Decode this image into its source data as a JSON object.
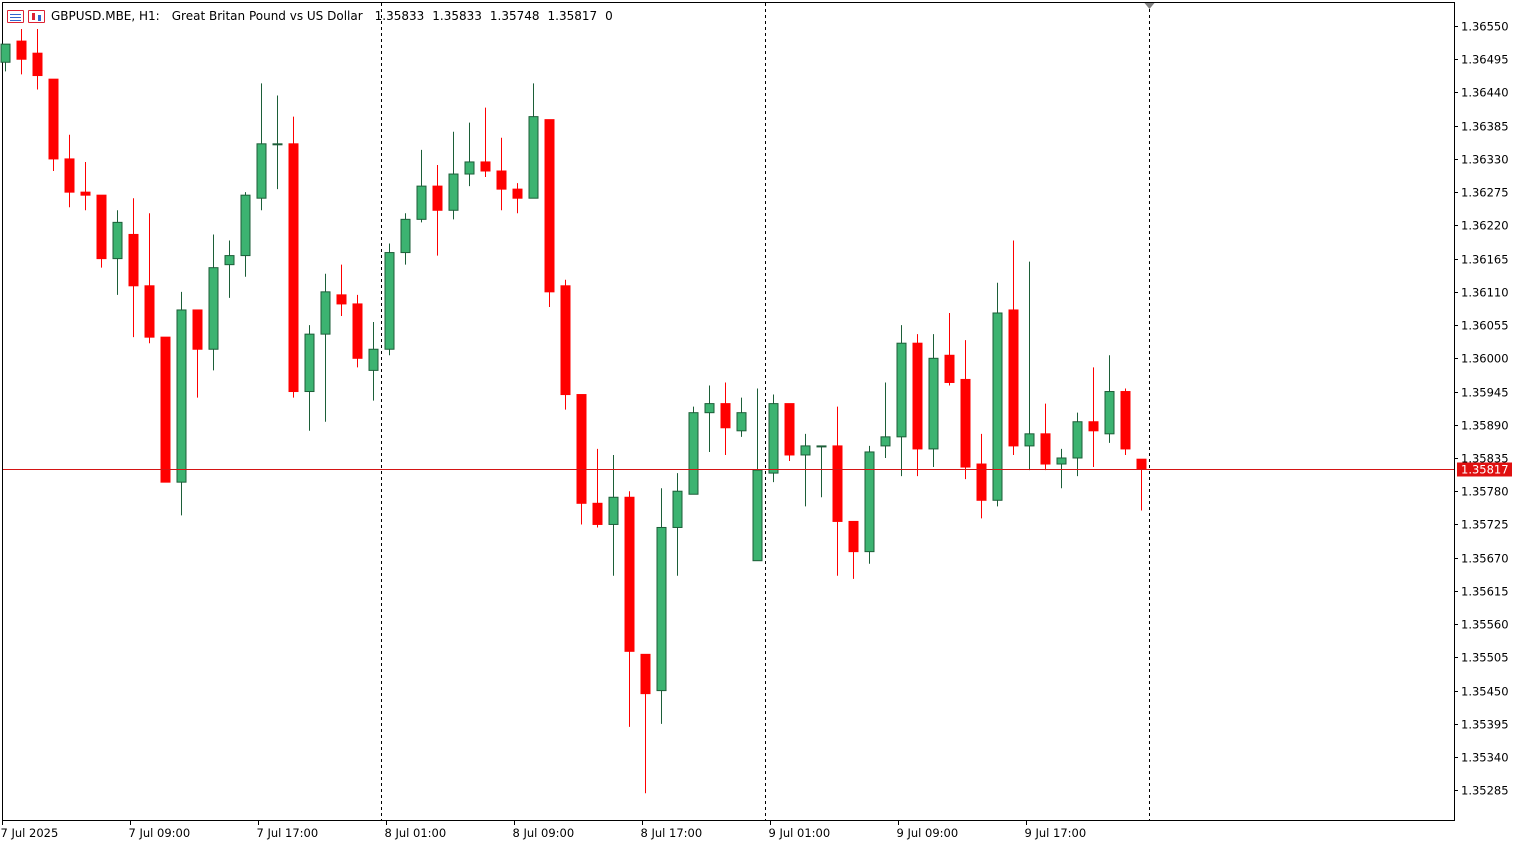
{
  "header": {
    "symbol": "GBPUSD.MBE, H1:",
    "description": "Great Britan Pound vs US Dollar",
    "open": "1.35833",
    "high": "1.35833",
    "low": "1.35748",
    "close": "1.35817",
    "volume": "0",
    "icons": [
      "quick-list-icon",
      "one-click-trading-icon"
    ]
  },
  "colors": {
    "bull_fill": "#3cb371",
    "bear_fill": "#ff0000",
    "bull_outline": "#1c5e38",
    "bear_outline": "#ff0000",
    "price_line": "#d41414",
    "price_label_bg": "#e01010",
    "grid": "#000000"
  },
  "chart_data": {
    "type": "candlestick",
    "timeframe": "H1",
    "y_axis": {
      "ylim": [
        1.35255,
        1.36575
      ],
      "tick_labels": [
        "1.36550",
        "1.36495",
        "1.36440",
        "1.36385",
        "1.36330",
        "1.36275",
        "1.36220",
        "1.36165",
        "1.36110",
        "1.36055",
        "1.36000",
        "1.35945",
        "1.35890",
        "1.35835",
        "1.35780",
        "1.35725",
        "1.35670",
        "1.35615",
        "1.35560",
        "1.35505",
        "1.35450",
        "1.35395",
        "1.35340",
        "1.35285"
      ]
    },
    "x_axis": {
      "tick_labels": [
        "7 Jul 2025",
        "7 Jul 09:00",
        "7 Jul 17:00",
        "8 Jul 01:00",
        "8 Jul 09:00",
        "8 Jul 17:00",
        "9 Jul 01:00",
        "9 Jul 09:00",
        "9 Jul 17:00"
      ],
      "tick_bar_index": [
        0,
        8,
        16,
        24,
        32,
        40,
        48,
        56,
        64
      ],
      "period_separator_bar_index": [
        23,
        47,
        71
      ]
    },
    "current_price": "1.35817",
    "candles": [
      {
        "o": 1.3649,
        "h": 1.3652,
        "l": 1.36475,
        "c": 1.3652
      },
      {
        "o": 1.36525,
        "h": 1.36545,
        "l": 1.3647,
        "c": 1.36495
      },
      {
        "o": 1.36505,
        "h": 1.36545,
        "l": 1.36445,
        "c": 1.36468
      },
      {
        "o": 1.36462,
        "h": 1.36462,
        "l": 1.3631,
        "c": 1.3633
      },
      {
        "o": 1.3633,
        "h": 1.3637,
        "l": 1.3625,
        "c": 1.36275
      },
      {
        "o": 1.36275,
        "h": 1.36325,
        "l": 1.36245,
        "c": 1.3627
      },
      {
        "o": 1.3627,
        "h": 1.3627,
        "l": 1.3615,
        "c": 1.36165
      },
      {
        "o": 1.36165,
        "h": 1.36245,
        "l": 1.36105,
        "c": 1.36225
      },
      {
        "o": 1.36205,
        "h": 1.36265,
        "l": 1.36035,
        "c": 1.3612
      },
      {
        "o": 1.3612,
        "h": 1.3624,
        "l": 1.36025,
        "c": 1.36035
      },
      {
        "o": 1.36035,
        "h": 1.36035,
        "l": 1.35805,
        "c": 1.35795
      },
      {
        "o": 1.35795,
        "h": 1.3611,
        "l": 1.3574,
        "c": 1.3608
      },
      {
        "o": 1.3608,
        "h": 1.3608,
        "l": 1.35935,
        "c": 1.36015
      },
      {
        "o": 1.36015,
        "h": 1.36205,
        "l": 1.3598,
        "c": 1.3615
      },
      {
        "o": 1.36155,
        "h": 1.36195,
        "l": 1.361,
        "c": 1.3617
      },
      {
        "o": 1.3617,
        "h": 1.36275,
        "l": 1.36135,
        "c": 1.3627
      },
      {
        "o": 1.36265,
        "h": 1.36455,
        "l": 1.36245,
        "c": 1.36355
      },
      {
        "o": 1.36355,
        "h": 1.36435,
        "l": 1.3628,
        "c": 1.36355
      },
      {
        "o": 1.36355,
        "h": 1.364,
        "l": 1.35935,
        "c": 1.35945
      },
      {
        "o": 1.35945,
        "h": 1.36055,
        "l": 1.3588,
        "c": 1.3604
      },
      {
        "o": 1.3604,
        "h": 1.3614,
        "l": 1.35895,
        "c": 1.3611
      },
      {
        "o": 1.36105,
        "h": 1.36155,
        "l": 1.3607,
        "c": 1.3609
      },
      {
        "o": 1.3609,
        "h": 1.36105,
        "l": 1.35985,
        "c": 1.36
      },
      {
        "o": 1.3598,
        "h": 1.3606,
        "l": 1.3593,
        "c": 1.36015
      },
      {
        "o": 1.36015,
        "h": 1.3619,
        "l": 1.36005,
        "c": 1.36175
      },
      {
        "o": 1.36175,
        "h": 1.3624,
        "l": 1.36155,
        "c": 1.3623
      },
      {
        "o": 1.3623,
        "h": 1.36345,
        "l": 1.36225,
        "c": 1.36285
      },
      {
        "o": 1.36285,
        "h": 1.3632,
        "l": 1.3617,
        "c": 1.36245
      },
      {
        "o": 1.36245,
        "h": 1.36375,
        "l": 1.3623,
        "c": 1.36305
      },
      {
        "o": 1.36305,
        "h": 1.3639,
        "l": 1.36285,
        "c": 1.36325
      },
      {
        "o": 1.36325,
        "h": 1.36415,
        "l": 1.363,
        "c": 1.3631
      },
      {
        "o": 1.3631,
        "h": 1.36365,
        "l": 1.36245,
        "c": 1.3628
      },
      {
        "o": 1.3628,
        "h": 1.3629,
        "l": 1.3624,
        "c": 1.36265
      },
      {
        "o": 1.36265,
        "h": 1.36455,
        "l": 1.36265,
        "c": 1.364
      },
      {
        "o": 1.36395,
        "h": 1.36395,
        "l": 1.36085,
        "c": 1.3611
      },
      {
        "o": 1.3612,
        "h": 1.3613,
        "l": 1.35915,
        "c": 1.3594
      },
      {
        "o": 1.3594,
        "h": 1.3594,
        "l": 1.35725,
        "c": 1.3576
      },
      {
        "o": 1.3576,
        "h": 1.3585,
        "l": 1.3572,
        "c": 1.35725
      },
      {
        "o": 1.35725,
        "h": 1.3584,
        "l": 1.3564,
        "c": 1.3577
      },
      {
        "o": 1.3577,
        "h": 1.3578,
        "l": 1.3539,
        "c": 1.35515
      },
      {
        "o": 1.3551,
        "h": 1.3551,
        "l": 1.3528,
        "c": 1.35445
      },
      {
        "o": 1.3545,
        "h": 1.35785,
        "l": 1.35395,
        "c": 1.3572
      },
      {
        "o": 1.3572,
        "h": 1.3581,
        "l": 1.3564,
        "c": 1.3578
      },
      {
        "o": 1.35775,
        "h": 1.3592,
        "l": 1.35775,
        "c": 1.3591
      },
      {
        "o": 1.3591,
        "h": 1.35955,
        "l": 1.35845,
        "c": 1.35925
      },
      {
        "o": 1.35925,
        "h": 1.3596,
        "l": 1.3584,
        "c": 1.35885
      },
      {
        "o": 1.3588,
        "h": 1.35935,
        "l": 1.3587,
        "c": 1.3591
      },
      {
        "o": 1.35665,
        "h": 1.3595,
        "l": 1.35665,
        "c": 1.35815
      },
      {
        "o": 1.3581,
        "h": 1.3594,
        "l": 1.35795,
        "c": 1.35925
      },
      {
        "o": 1.35925,
        "h": 1.35925,
        "l": 1.3583,
        "c": 1.3584
      },
      {
        "o": 1.3584,
        "h": 1.35875,
        "l": 1.35755,
        "c": 1.35855
      },
      {
        "o": 1.35855,
        "h": 1.35855,
        "l": 1.3577,
        "c": 1.35855
      },
      {
        "o": 1.35855,
        "h": 1.3592,
        "l": 1.3564,
        "c": 1.3573
      },
      {
        "o": 1.3573,
        "h": 1.3573,
        "l": 1.35635,
        "c": 1.3568
      },
      {
        "o": 1.3568,
        "h": 1.35855,
        "l": 1.3566,
        "c": 1.35845
      },
      {
        "o": 1.35855,
        "h": 1.3596,
        "l": 1.35835,
        "c": 1.3587
      },
      {
        "o": 1.3587,
        "h": 1.36055,
        "l": 1.35805,
        "c": 1.36025
      },
      {
        "o": 1.36025,
        "h": 1.3604,
        "l": 1.35805,
        "c": 1.3585
      },
      {
        "o": 1.3585,
        "h": 1.3604,
        "l": 1.3582,
        "c": 1.36
      },
      {
        "o": 1.36005,
        "h": 1.36075,
        "l": 1.35955,
        "c": 1.3596
      },
      {
        "o": 1.35965,
        "h": 1.3603,
        "l": 1.358,
        "c": 1.3582
      },
      {
        "o": 1.35825,
        "h": 1.35875,
        "l": 1.35735,
        "c": 1.35765
      },
      {
        "o": 1.35765,
        "h": 1.36125,
        "l": 1.35755,
        "c": 1.36075
      },
      {
        "o": 1.3608,
        "h": 1.36195,
        "l": 1.3584,
        "c": 1.35855
      },
      {
        "o": 1.35855,
        "h": 1.3616,
        "l": 1.35815,
        "c": 1.35875
      },
      {
        "o": 1.35875,
        "h": 1.35925,
        "l": 1.35815,
        "c": 1.35825
      },
      {
        "o": 1.35825,
        "h": 1.3585,
        "l": 1.35785,
        "c": 1.35835
      },
      {
        "o": 1.35835,
        "h": 1.3591,
        "l": 1.35805,
        "c": 1.35895
      },
      {
        "o": 1.35895,
        "h": 1.35985,
        "l": 1.3582,
        "c": 1.3588
      },
      {
        "o": 1.35875,
        "h": 1.36005,
        "l": 1.3586,
        "c": 1.35945
      },
      {
        "o": 1.35945,
        "h": 1.3595,
        "l": 1.3584,
        "c": 1.3585
      },
      {
        "o": 1.35833,
        "h": 1.35833,
        "l": 1.35748,
        "c": 1.35817
      }
    ]
  }
}
